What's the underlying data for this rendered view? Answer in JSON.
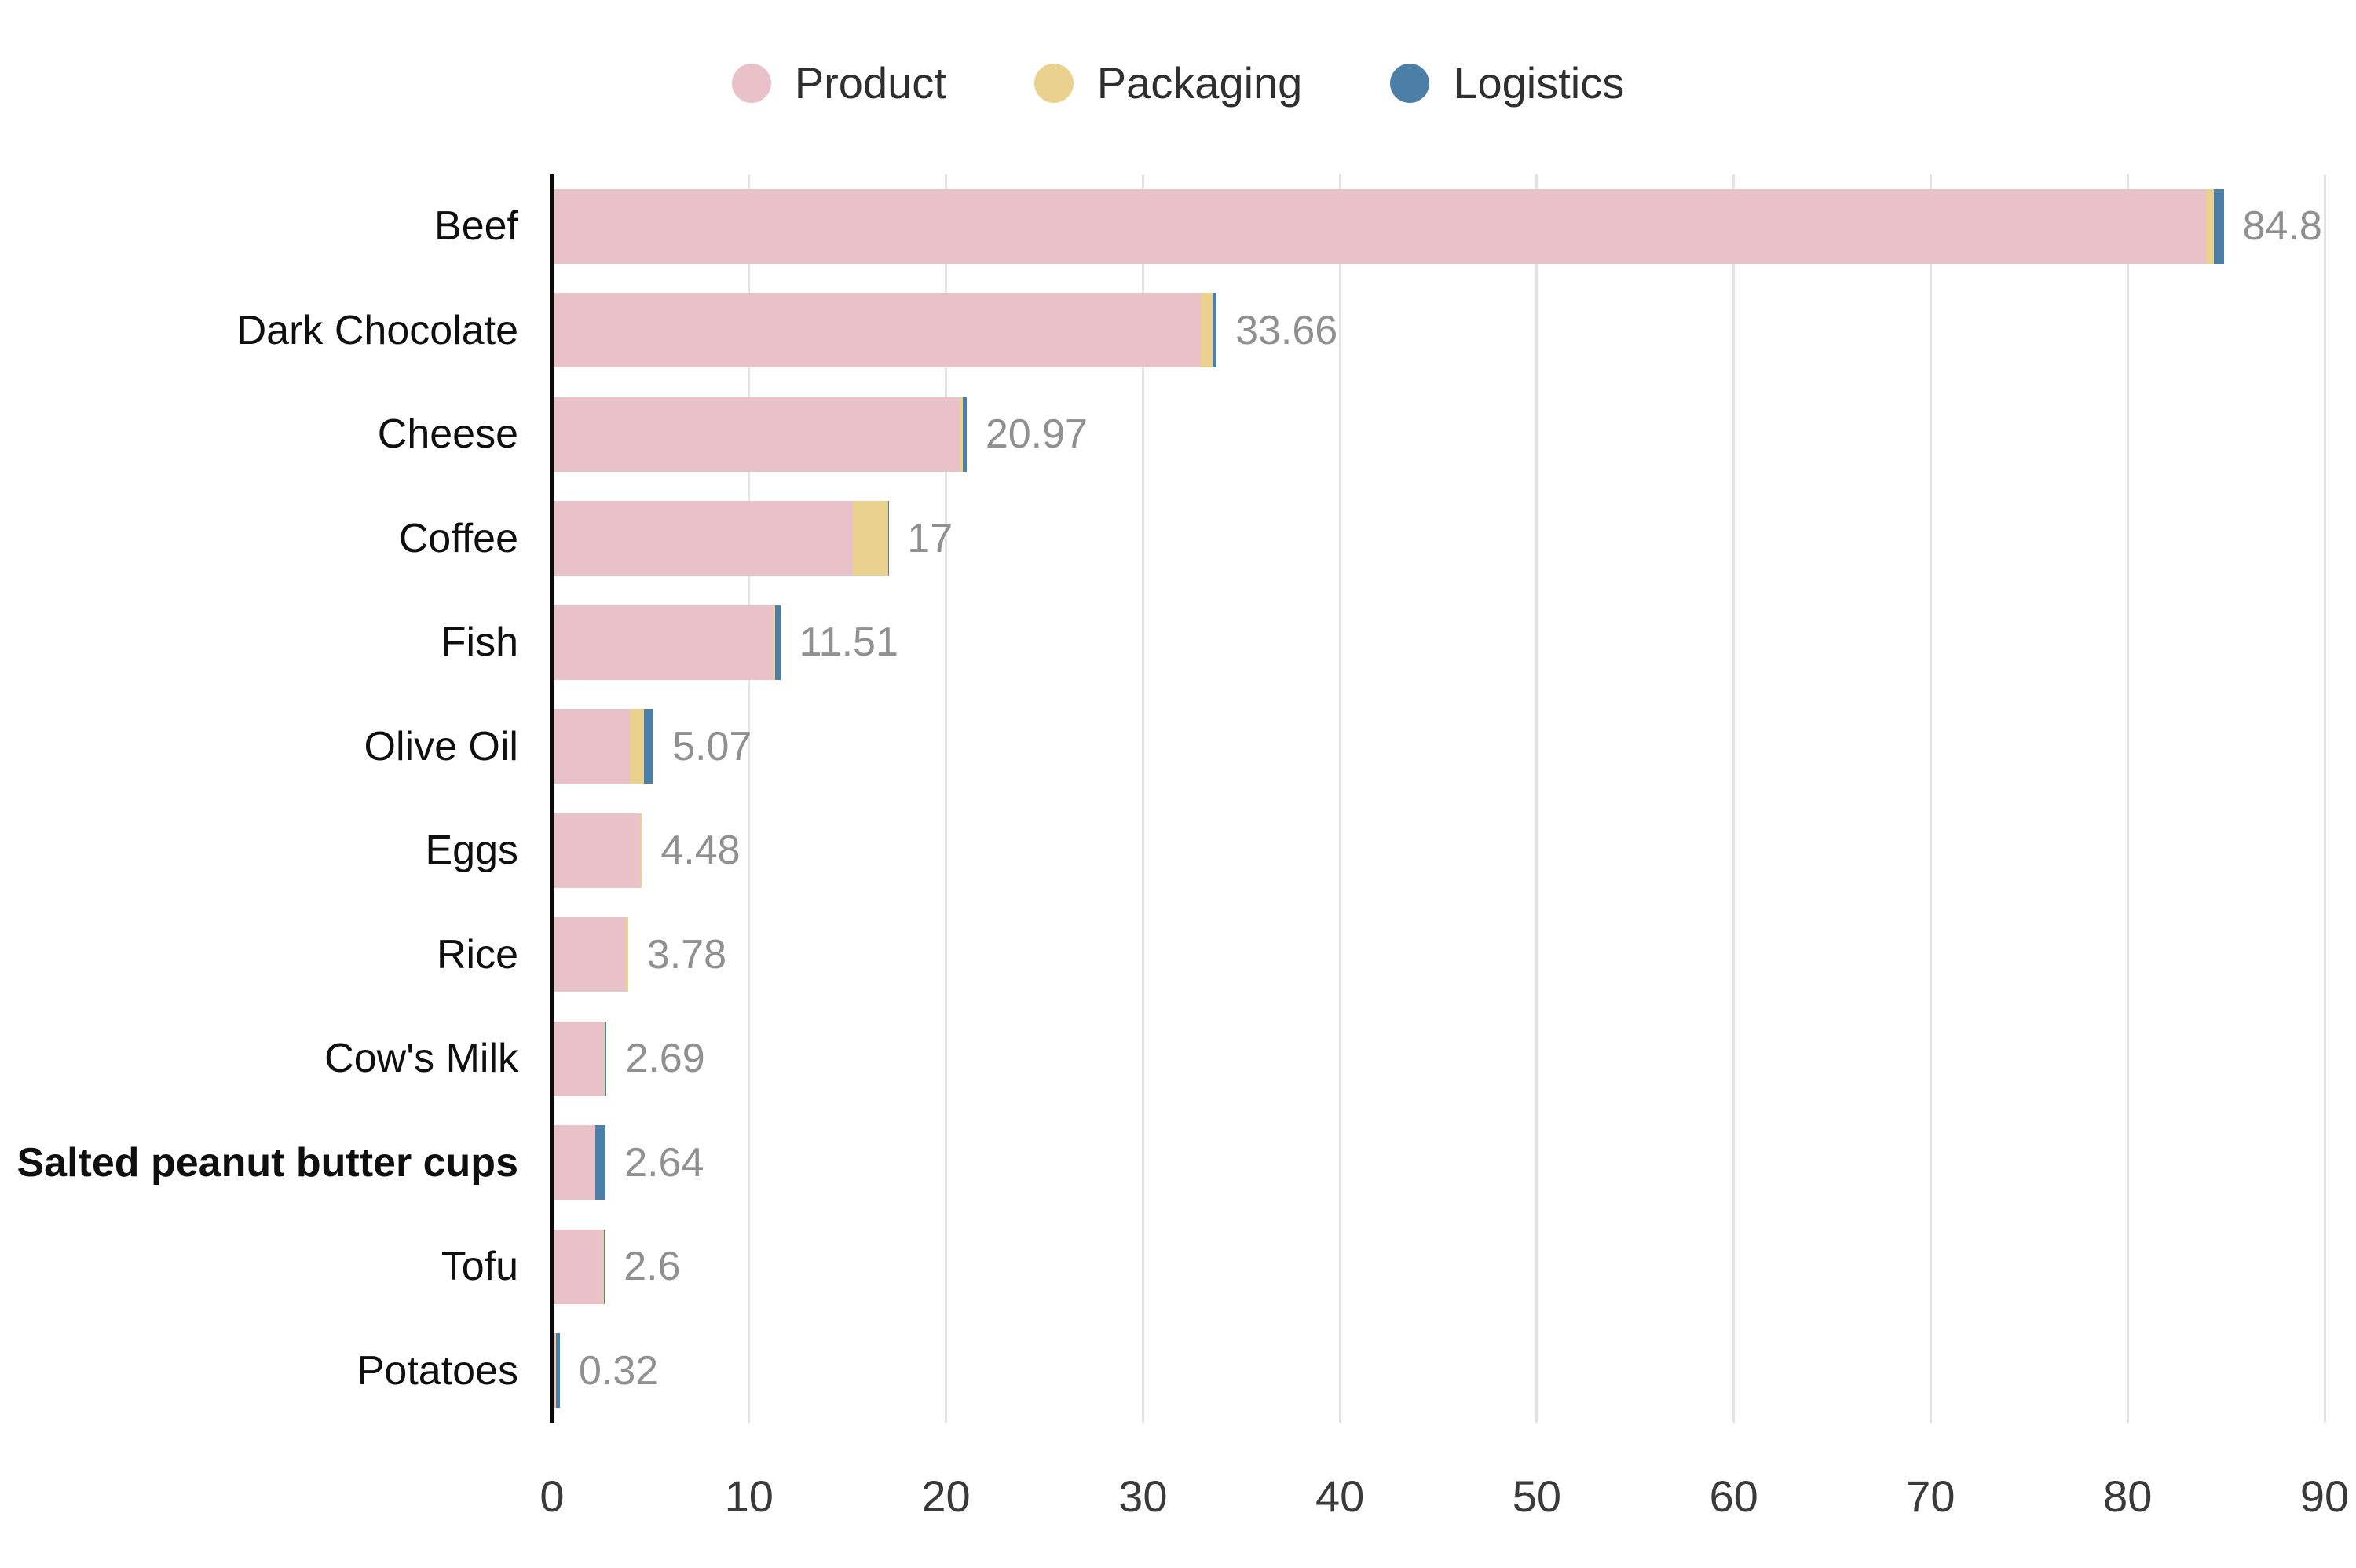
{
  "chart_data": {
    "type": "bar",
    "orientation": "horizontal",
    "stacked": true,
    "title": "",
    "xlabel": "",
    "ylabel": "",
    "xlim": [
      0,
      90
    ],
    "x_ticks": [
      0,
      10,
      20,
      30,
      40,
      50,
      60,
      70,
      80,
      90
    ],
    "grid": "vertical",
    "legend_position": "top",
    "categories": [
      "Beef",
      "Dark Chocolate",
      "Cheese",
      "Coffee",
      "Fish",
      "Olive Oil",
      "Eggs",
      "Rice",
      "Cow's Milk",
      "Salted peanut butter cups",
      "Tofu",
      "Potatoes"
    ],
    "bold_categories": [
      "Salted peanut butter cups"
    ],
    "series": [
      {
        "name": "Product",
        "color": "#E8C2C8",
        "values": [
          83.9,
          32.86,
          20.6,
          15.2,
          11.16,
          3.87,
          4.38,
          3.68,
          2.55,
          2.1,
          2.48,
          0.08
        ]
      },
      {
        "name": "Packaging",
        "color": "#EAD28E",
        "values": [
          0.4,
          0.6,
          0.17,
          1.77,
          0.1,
          0.7,
          0.1,
          0.1,
          0.06,
          0.02,
          0.06,
          0.02
        ]
      },
      {
        "name": "Logistics",
        "color": "#4C7FA8",
        "values": [
          0.5,
          0.2,
          0.2,
          0.03,
          0.25,
          0.5,
          0.0,
          0.0,
          0.08,
          0.52,
          0.06,
          0.22
        ]
      }
    ],
    "totals": [
      "84.8",
      "33.66",
      "20.97",
      "17",
      "11.51",
      "5.07",
      "4.48",
      "3.78",
      "2.69",
      "2.64",
      "2.6",
      "0.32"
    ]
  },
  "style": {
    "grid_color": "#e3e3e3",
    "axis_color": "#0c0c0c",
    "value_label_color": "#909090"
  }
}
